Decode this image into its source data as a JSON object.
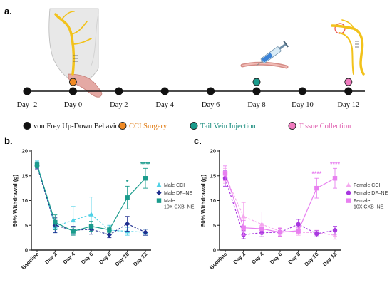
{
  "panel_labels": {
    "a": "a.",
    "b": "b.",
    "c": "c."
  },
  "timeline": {
    "days": [
      "Day -2",
      "Day 0",
      "Day 2",
      "Day 4",
      "Day 6",
      "Day 8",
      "Day 10",
      "Day 12"
    ],
    "marker_colors": [
      "#111111",
      "#111111",
      "#111111",
      "#111111",
      "#111111",
      "#111111",
      "#111111",
      "#111111"
    ],
    "event_markers": [
      {
        "day_index": 1,
        "color": "#f08a24",
        "label": "CCI Surgery"
      },
      {
        "day_index": 5,
        "color": "#1a9b8c",
        "label": "Tail Vein Injection"
      },
      {
        "day_index": 7,
        "color": "#f07bbf",
        "label": "Tissue Collection"
      }
    ]
  },
  "legend": [
    {
      "label": "von Frey Up-Down Behavior",
      "color": "#111111",
      "text_color": "#111111"
    },
    {
      "label": "CCI Surgery",
      "color": "#f08a24",
      "text_color": "#e07a10"
    },
    {
      "label": "Tail Vein Injection",
      "color": "#1a9b8c",
      "text_color": "#148a7b"
    },
    {
      "label": "Tissue Collection",
      "color": "#f07bbf",
      "text_color": "#e060b0"
    }
  ],
  "icons": [
    "mouse-hindpaw-nerve-icon",
    "syringe-icon",
    "nerve-tissue-icon"
  ],
  "chart_data": [
    {
      "type": "line",
      "panel": "b",
      "title": "",
      "xlabel": "",
      "ylabel": "50% Withdrawal (g)",
      "categories": [
        "Baseline",
        "Day 2",
        "Day 4",
        "Day 6",
        "Day 8",
        "Day 10",
        "Day 12"
      ],
      "ylim": [
        0,
        20
      ],
      "yticks": [
        0,
        5,
        10,
        15,
        20
      ],
      "series": [
        {
          "name": "Male CCI",
          "color": "#4fd1e6",
          "marker": "triangle",
          "dash": true,
          "values": [
            17.5,
            4.8,
            6.0,
            7.2,
            4.0,
            3.8,
            3.6
          ],
          "errors": [
            0.5,
            1.2,
            2.8,
            3.5,
            1.0,
            0.8,
            0.6
          ]
        },
        {
          "name": "Male DF–NE",
          "color": "#1f2f8f",
          "marker": "diamond",
          "dash": true,
          "values": [
            17.0,
            5.0,
            4.0,
            4.2,
            3.1,
            5.3,
            3.6
          ],
          "errors": [
            0.6,
            1.5,
            0.8,
            1.0,
            0.6,
            1.5,
            0.6
          ]
        },
        {
          "name": "Male\n10X CXB–NE",
          "color": "#1a9b8c",
          "marker": "square",
          "dash": false,
          "values": [
            17.2,
            5.6,
            3.8,
            4.8,
            4.1,
            10.6,
            14.5
          ],
          "errors": [
            0.6,
            1.5,
            0.8,
            1.0,
            0.6,
            2.3,
            2.0
          ]
        }
      ],
      "significance": [
        {
          "category": "Day 10",
          "text": "*",
          "color": "#1a9b8c"
        },
        {
          "category": "Day 12",
          "text": "****",
          "color": "#1a9b8c"
        }
      ],
      "legend_position": "right"
    },
    {
      "type": "line",
      "panel": "c",
      "title": "",
      "xlabel": "",
      "ylabel": "50% Withdrawal (g)",
      "categories": [
        "Baseline",
        "Day 2",
        "Day 4",
        "Day 6",
        "Day 8",
        "Day 10",
        "Day 12"
      ],
      "ylim": [
        0,
        20
      ],
      "yticks": [
        0,
        5,
        10,
        15,
        20
      ],
      "series": [
        {
          "name": "Female CCI",
          "color": "#f5a8ee",
          "marker": "triangle",
          "dash": true,
          "values": [
            15.0,
            6.8,
            5.2,
            3.8,
            3.6,
            3.5,
            3.0
          ],
          "errors": [
            1.5,
            2.8,
            2.5,
            0.8,
            0.6,
            0.5,
            0.8
          ]
        },
        {
          "name": "Female DF–NE",
          "color": "#a838e0",
          "marker": "circle",
          "dash": true,
          "values": [
            14.5,
            3.1,
            3.5,
            3.6,
            5.2,
            3.3,
            4.0
          ],
          "errors": [
            1.6,
            0.8,
            0.8,
            0.8,
            1.0,
            0.6,
            0.8
          ]
        },
        {
          "name": "Female\n10X CXB–NE",
          "color": "#e880f0",
          "marker": "square",
          "dash": false,
          "values": [
            15.5,
            4.5,
            4.3,
            3.6,
            3.9,
            12.5,
            14.5
          ],
          "errors": [
            1.5,
            1.5,
            1.0,
            0.8,
            0.6,
            2.0,
            2.0
          ]
        }
      ],
      "significance": [
        {
          "category": "Day 10",
          "text": "****",
          "color": "#e880f0"
        },
        {
          "category": "Day 12",
          "text": "****",
          "color": "#e880f0"
        }
      ],
      "legend_position": "right"
    }
  ]
}
